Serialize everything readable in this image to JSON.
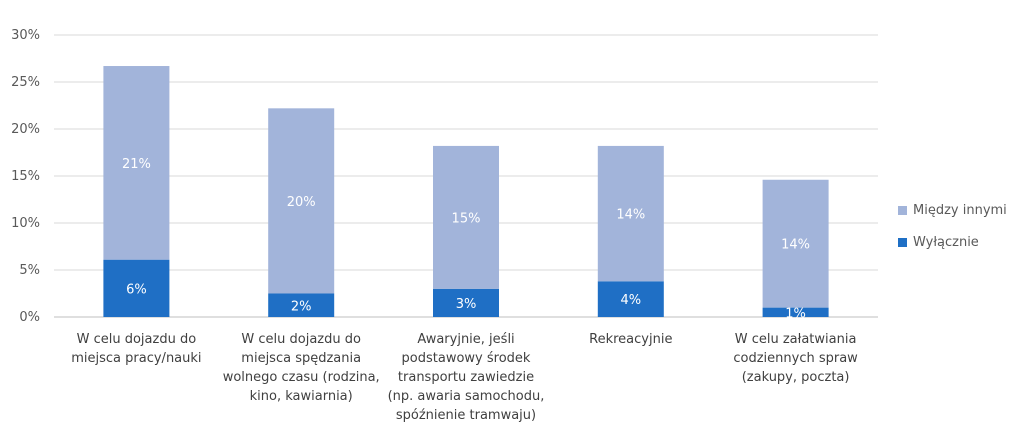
{
  "chart_data": {
    "type": "bar",
    "stacked": true,
    "categories": [
      [
        "W celu dojazdu do",
        "miejsca pracy/nauki"
      ],
      [
        "W celu dojazdu do",
        "miejsca spędzania",
        "wolnego czasu (rodzina,",
        "kino, kawiarnia)"
      ],
      [
        "Awaryjnie, jeśli",
        "podstawowy środek",
        "transportu zawiedzie",
        "(np. awaria samochodu,",
        "spóźnienie tramwaju)"
      ],
      [
        "Rekreacyjnie"
      ],
      [
        "W celu załatwiania",
        "codziennych spraw",
        "(zakupy, poczta)"
      ]
    ],
    "series": [
      {
        "name": "Wyłącznie",
        "values": [
          6.1,
          2.5,
          3.0,
          3.8,
          1.0
        ],
        "labels": [
          "6%",
          "2%",
          "3%",
          "4%",
          "1%"
        ],
        "color": "#1f6fc5"
      },
      {
        "name": "Między innymi",
        "values": [
          20.6,
          19.7,
          15.2,
          14.4,
          13.6
        ],
        "labels": [
          "21%",
          "20%",
          "15%",
          "14%",
          "14%"
        ],
        "color": "#a2b4da"
      }
    ],
    "ylim": [
      0,
      30
    ],
    "yticks": [
      0,
      5,
      10,
      15,
      20,
      25,
      30
    ],
    "ytick_labels": [
      "0%",
      "5%",
      "10%",
      "15%",
      "20%",
      "25%",
      "30%"
    ],
    "grid": true,
    "legend_position": "right",
    "legend_order": [
      "Między innymi",
      "Wyłącznie"
    ]
  }
}
